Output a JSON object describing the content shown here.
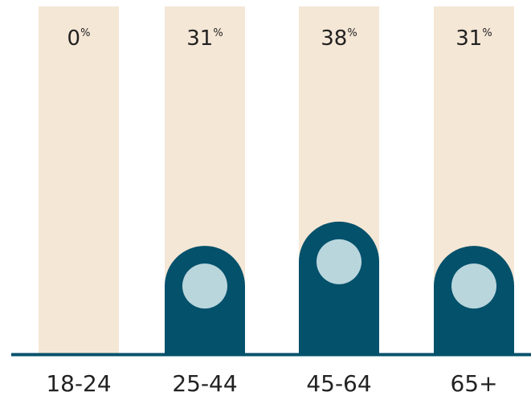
{
  "chart_data": {
    "type": "bar",
    "categories": [
      "18-24",
      "25-44",
      "45-64",
      "65+"
    ],
    "values": [
      0,
      31,
      38,
      31
    ],
    "value_suffix": "%",
    "ylim": [
      0,
      100
    ],
    "title": "",
    "xlabel": "",
    "ylabel": "",
    "grid": false,
    "legend": "none",
    "colors": {
      "bar": "#03516b",
      "track": "#f5e7d6",
      "dot": "#b9d6dd",
      "baseline": "#03516b",
      "text": "#222222"
    }
  }
}
